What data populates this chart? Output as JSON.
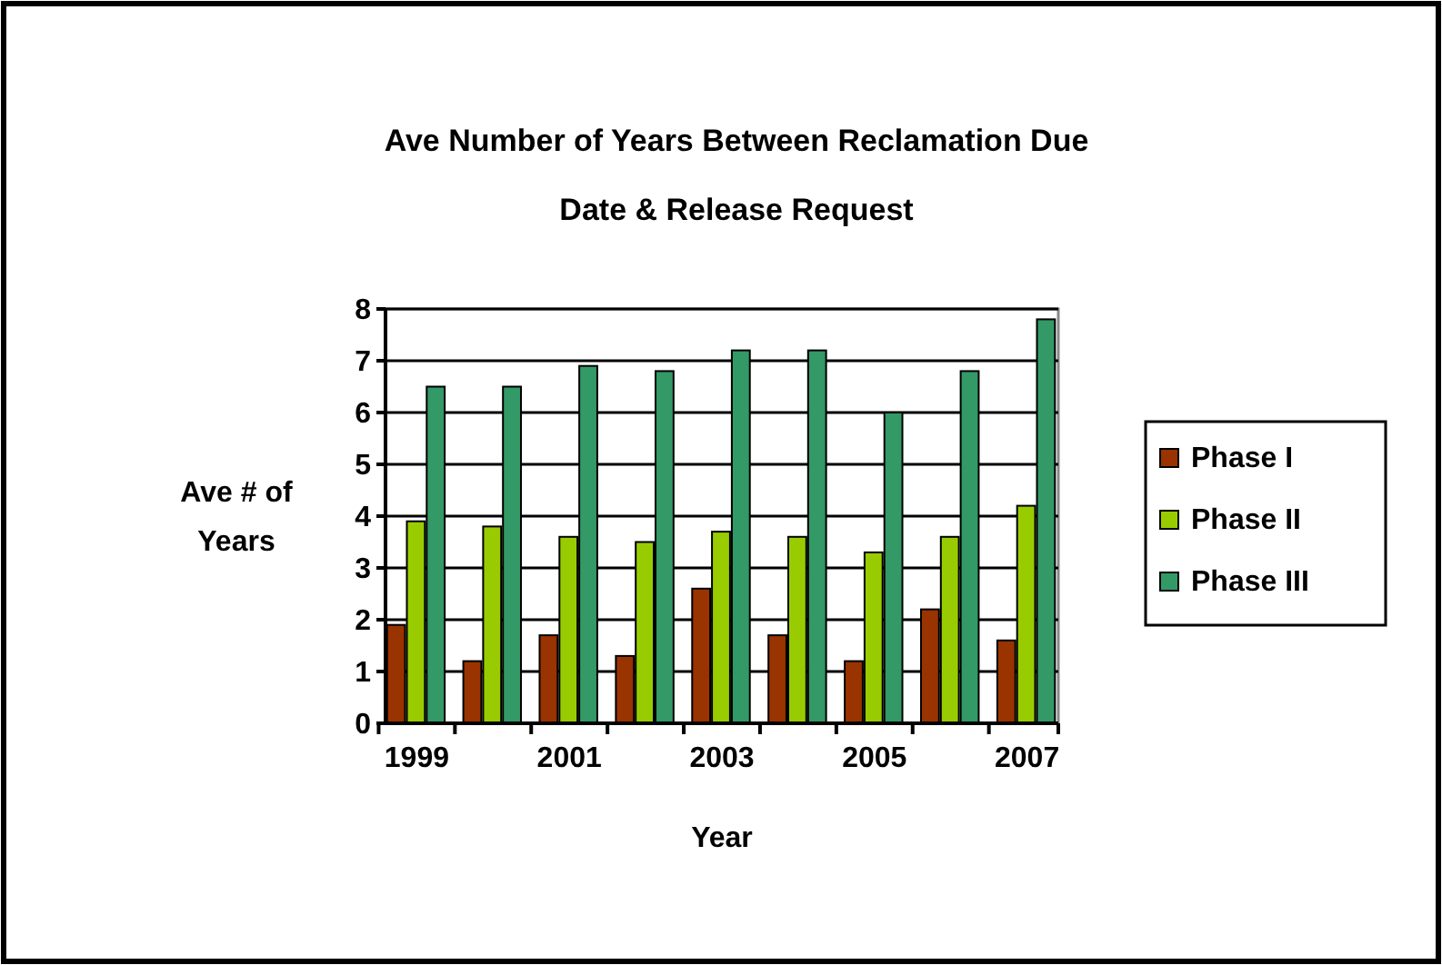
{
  "chart_data": {
    "type": "bar",
    "title": "Ave Number of Years Between Reclamation Due Date & Release Request",
    "xlabel": "Year",
    "ylabel": "Ave # of Years",
    "categories": [
      "1999",
      null,
      "2001",
      null,
      "2003",
      null,
      "2005",
      null,
      "2007"
    ],
    "series": [
      {
        "name": "Phase I",
        "color": "#993300",
        "values": [
          1.9,
          1.2,
          1.7,
          1.3,
          2.6,
          1.7,
          1.2,
          2.2,
          1.6
        ]
      },
      {
        "name": "Phase II",
        "color": "#99cc00",
        "values": [
          3.9,
          3.8,
          3.6,
          3.5,
          3.7,
          3.6,
          3.3,
          3.6,
          4.2
        ]
      },
      {
        "name": "Phase III",
        "color": "#339966",
        "values": [
          6.5,
          6.5,
          6.9,
          6.8,
          7.2,
          7.2,
          6.0,
          6.8,
          7.8
        ]
      }
    ],
    "ylim": [
      0,
      8
    ],
    "yticks": [
      0,
      1,
      2,
      3,
      4,
      5,
      6,
      7,
      8
    ],
    "grid": "y",
    "legend": "right"
  }
}
